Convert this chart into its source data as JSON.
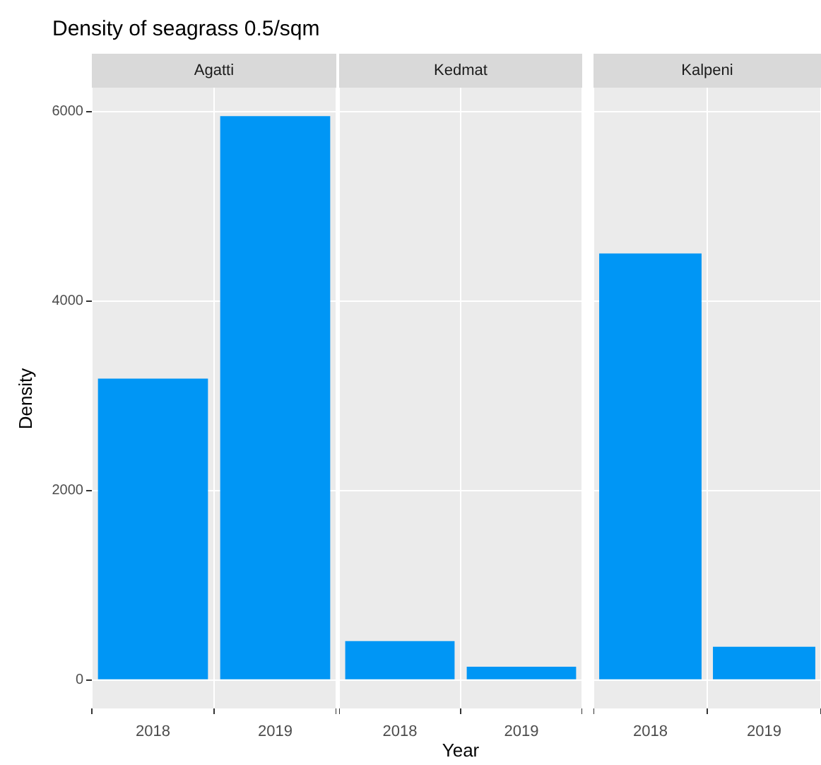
{
  "chart_data": [
    {
      "type": "bar",
      "title": "Density of seagrass 0.5/sqm",
      "subtitle": "Agatti",
      "ylabel": "Density",
      "categories": [
        "2018",
        "2019"
      ],
      "values": [
        3180,
        5950
      ],
      "color": "#0096f5",
      "ylim": [
        -300,
        6250
      ],
      "yticks": [
        0,
        2000,
        4000,
        6000
      ],
      "grid": true,
      "legend": false
    },
    {
      "type": "bar",
      "subtitle": "Kedmat",
      "xlabel": "Year",
      "categories": [
        "2018",
        "2019"
      ],
      "values": [
        410,
        140
      ],
      "color": "#0096f5",
      "ylim": [
        -300,
        6250
      ],
      "yticks": [
        0,
        2000,
        4000,
        6000
      ],
      "grid": true,
      "legend": false,
      "tick_labels": "x"
    },
    {
      "type": "bar",
      "subtitle": "Kalpeni",
      "categories": [
        "2018",
        "2019"
      ],
      "values": [
        4500,
        350
      ],
      "color": "#0096f5",
      "ylim": [
        -300,
        6250
      ],
      "yticks": [
        0,
        2000,
        4000,
        6000
      ],
      "grid": true,
      "legend": false,
      "tick_labels": "x"
    }
  ]
}
